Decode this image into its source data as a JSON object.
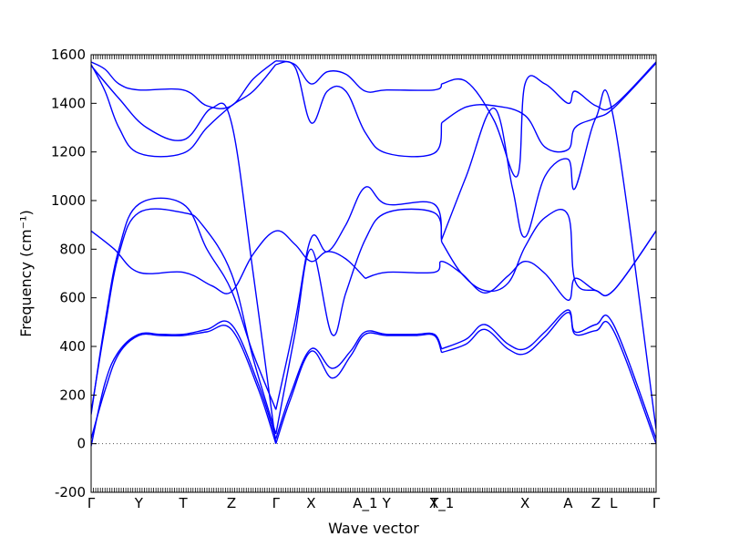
{
  "chart_data": {
    "type": "line",
    "title": "",
    "xlabel": "Wave vector",
    "ylabel": "Frequency (cm⁻¹)",
    "ylim": [
      -200,
      1600
    ],
    "yticks": [
      -200,
      0,
      200,
      400,
      600,
      800,
      1000,
      1200,
      1400,
      1600
    ],
    "xlim": [
      0,
      12.2
    ],
    "high_symmetry_points": [
      {
        "label": "Γ",
        "x": 0
      },
      {
        "label": "Y",
        "x": 1.03
      },
      {
        "label": "T",
        "x": 1.99
      },
      {
        "label": "Z",
        "x": 3.03
      },
      {
        "label": "Γ",
        "x": 3.99
      },
      {
        "label": "X",
        "x": 4.75
      },
      {
        "label": "A_1",
        "x": 5.92
      },
      {
        "label": "Y",
        "x": 6.38
      },
      {
        "label": "T",
        "x": 7.41
      },
      {
        "label": "X_1",
        "x": 7.57
      },
      {
        "label": "X",
        "x": 9.37
      },
      {
        "label": "A",
        "x": 10.3
      },
      {
        "label": "Z",
        "x": 10.9
      },
      {
        "label": "L",
        "x": 11.28
      },
      {
        "label": "Γ",
        "x": 12.2
      }
    ],
    "zero_line": 0,
    "color": "#0000ff",
    "series": [
      {
        "x": [
          0,
          0.3,
          0.6,
          1.03,
          1.5,
          1.99,
          2.5,
          3.03,
          3.6,
          3.99
        ],
        "y": [
          -10,
          250,
          380,
          450,
          450,
          450,
          470,
          490,
          250,
          20
        ]
      },
      {
        "x": [
          3.99,
          4.3,
          4.75,
          5.2,
          5.6,
          5.92,
          6.38,
          7.0,
          7.41,
          7.57
        ],
        "y": [
          20,
          200,
          390,
          310,
          380,
          460,
          450,
          450,
          450,
          390
        ]
      },
      {
        "x": [
          7.57,
          8.1,
          8.5,
          9.0,
          9.37,
          9.8,
          10.3,
          10.45,
          10.9,
          11.28,
          12.2
        ],
        "y": [
          390,
          430,
          490,
          410,
          390,
          460,
          550,
          460,
          490,
          490,
          20
        ]
      },
      {
        "x": [
          0,
          0.3,
          0.6,
          1.03,
          1.5,
          1.99,
          2.5,
          3.03,
          3.6,
          3.99
        ],
        "y": [
          20,
          220,
          370,
          445,
          445,
          445,
          460,
          470,
          230,
          0
        ]
      },
      {
        "x": [
          3.99,
          4.3,
          4.75,
          5.2,
          5.6,
          5.92,
          6.38,
          7.0,
          7.41,
          7.57
        ],
        "y": [
          0,
          180,
          380,
          270,
          360,
          450,
          445,
          445,
          445,
          375
        ]
      },
      {
        "x": [
          7.57,
          8.1,
          8.5,
          9.0,
          9.37,
          9.8,
          10.3,
          10.45,
          10.9,
          11.28,
          12.2
        ],
        "y": [
          375,
          410,
          470,
          390,
          370,
          440,
          540,
          450,
          465,
          465,
          0
        ]
      },
      {
        "x": [
          0,
          0.5,
          1.03,
          1.99,
          2.6,
          3.03,
          3.5,
          3.99,
          4.4,
          4.75,
          5.1,
          5.5,
          5.92
        ],
        "y": [
          875,
          800,
          705,
          705,
          650,
          625,
          780,
          875,
          820,
          750,
          790,
          760,
          680
        ]
      },
      {
        "x": [
          5.92,
          6.38,
          7.41,
          7.57,
          8.0,
          8.5,
          9.0,
          9.37,
          9.8,
          10.3,
          10.45,
          10.9,
          11.28,
          12.2
        ],
        "y": [
          680,
          705,
          705,
          750,
          700,
          620,
          690,
          750,
          700,
          590,
          680,
          630,
          630,
          875
        ]
      },
      {
        "x": [
          0,
          0.3,
          0.6,
          1.03,
          1.99,
          2.5,
          3.03,
          3.5,
          3.99
        ],
        "y": [
          120,
          500,
          800,
          985,
          985,
          800,
          630,
          370,
          140
        ]
      },
      {
        "x": [
          3.99,
          4.4,
          4.75,
          5.1,
          5.5,
          5.92,
          6.38,
          7.41,
          7.57
        ],
        "y": [
          140,
          500,
          845,
          790,
          900,
          1055,
          985,
          985,
          830
        ]
      },
      {
        "x": [
          7.57,
          8.0,
          8.5,
          9.0,
          9.37,
          9.8,
          10.3,
          10.45,
          10.9,
          11.28,
          12.2
        ],
        "y": [
          830,
          700,
          630,
          660,
          810,
          930,
          940,
          670,
          630,
          630,
          875
        ]
      },
      {
        "x": [
          0,
          0.3,
          0.6,
          1.03,
          1.99,
          2.4,
          3.03,
          3.5,
          3.99
        ],
        "y": [
          130,
          480,
          780,
          950,
          950,
          900,
          700,
          350,
          40
        ]
      },
      {
        "x": [
          3.99,
          4.4,
          4.75,
          5.2,
          5.5,
          5.92,
          6.38,
          7.41,
          7.57
        ],
        "y": [
          40,
          450,
          800,
          450,
          620,
          840,
          950,
          950,
          840
        ]
      },
      {
        "x": [
          7.57,
          8.1,
          8.7,
          9.1,
          9.37,
          9.8,
          10.3,
          10.45,
          10.9,
          11.28,
          12.2
        ],
        "y": [
          840,
          1100,
          1380,
          1050,
          850,
          1100,
          1170,
          1050,
          1340,
          1340,
          60
        ]
      },
      {
        "x": [
          0,
          0.3,
          0.6,
          1.03,
          1.99,
          2.5,
          3.03,
          3.5,
          3.99
        ],
        "y": [
          1560,
          1450,
          1300,
          1195,
          1195,
          1300,
          1390,
          1450,
          1560
        ]
      },
      {
        "x": [
          3.99,
          4.4,
          4.75,
          5.1,
          5.5,
          5.92,
          6.38,
          7.41,
          7.57
        ],
        "y": [
          1560,
          1550,
          1320,
          1450,
          1450,
          1280,
          1195,
          1195,
          1320
        ]
      },
      {
        "x": [
          7.57,
          8.1,
          8.7,
          9.37,
          9.8,
          10.3,
          10.45,
          10.9,
          11.28,
          12.2
        ],
        "y": [
          1320,
          1385,
          1390,
          1350,
          1220,
          1210,
          1300,
          1340,
          1380,
          1565
        ]
      },
      {
        "x": [
          0,
          0.3,
          0.6,
          1.03,
          1.99,
          2.5,
          3.03,
          3.5,
          3.99
        ],
        "y": [
          1570,
          1540,
          1480,
          1455,
          1455,
          1390,
          1390,
          1500,
          1575
        ]
      },
      {
        "x": [
          3.99,
          4.4,
          4.75,
          5.1,
          5.5,
          5.92,
          6.38,
          7.41,
          7.57
        ],
        "y": [
          1575,
          1560,
          1480,
          1530,
          1520,
          1450,
          1455,
          1455,
          1480
        ]
      },
      {
        "x": [
          7.57,
          8.1,
          8.7,
          9.2,
          9.37,
          9.8,
          10.3,
          10.45,
          10.9,
          11.28,
          12.2
        ],
        "y": [
          1480,
          1490,
          1330,
          1100,
          1480,
          1480,
          1400,
          1450,
          1390,
          1390,
          1570
        ]
      },
      {
        "x": [
          0,
          0.6,
          1.2,
          2.0,
          2.6,
          3.03,
          3.5,
          3.99
        ],
        "y": [
          1555,
          1420,
          1300,
          1250,
          1380,
          1320,
          700,
          0
        ]
      }
    ]
  }
}
